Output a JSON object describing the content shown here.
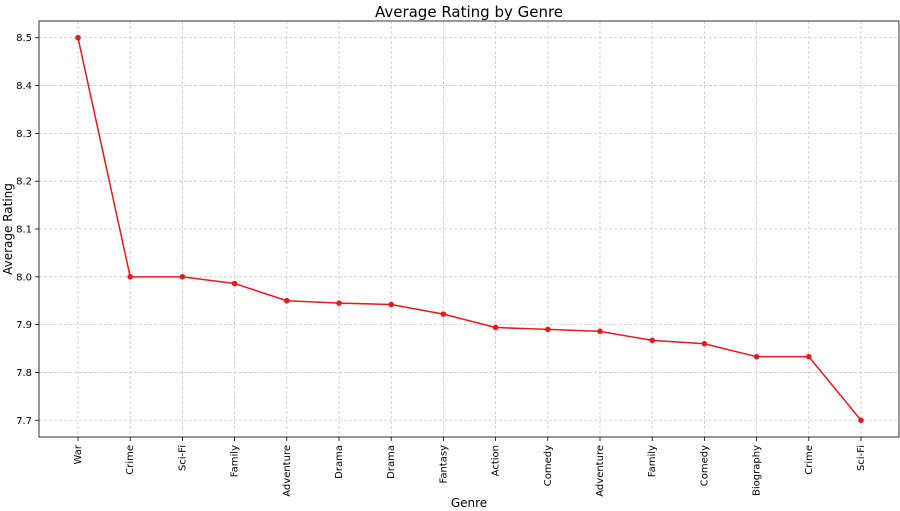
{
  "chart_data": {
    "type": "line",
    "title": "Average Rating by Genre",
    "xlabel": "Genre",
    "ylabel": "Average Rating",
    "categories": [
      "War",
      "Crime",
      "Sci-Fi",
      "Family",
      "Adventure",
      "Drama",
      "Drama",
      "Fantasy",
      "Action",
      "Comedy",
      "Adventure",
      "Family",
      "Comedy",
      "Biography",
      "Crime",
      "Sci-Fi"
    ],
    "values": [
      8.5,
      8.0,
      8.0,
      7.986,
      7.95,
      7.945,
      7.942,
      7.922,
      7.894,
      7.89,
      7.886,
      7.867,
      7.86,
      7.833,
      7.833,
      7.7
    ],
    "ylim": [
      7.665,
      8.535
    ],
    "yticks": [
      "7.7",
      "7.8",
      "7.9",
      "8.0",
      "8.1",
      "8.2",
      "8.3",
      "8.4",
      "8.5"
    ],
    "grid": true,
    "color": "#e41a1c"
  }
}
